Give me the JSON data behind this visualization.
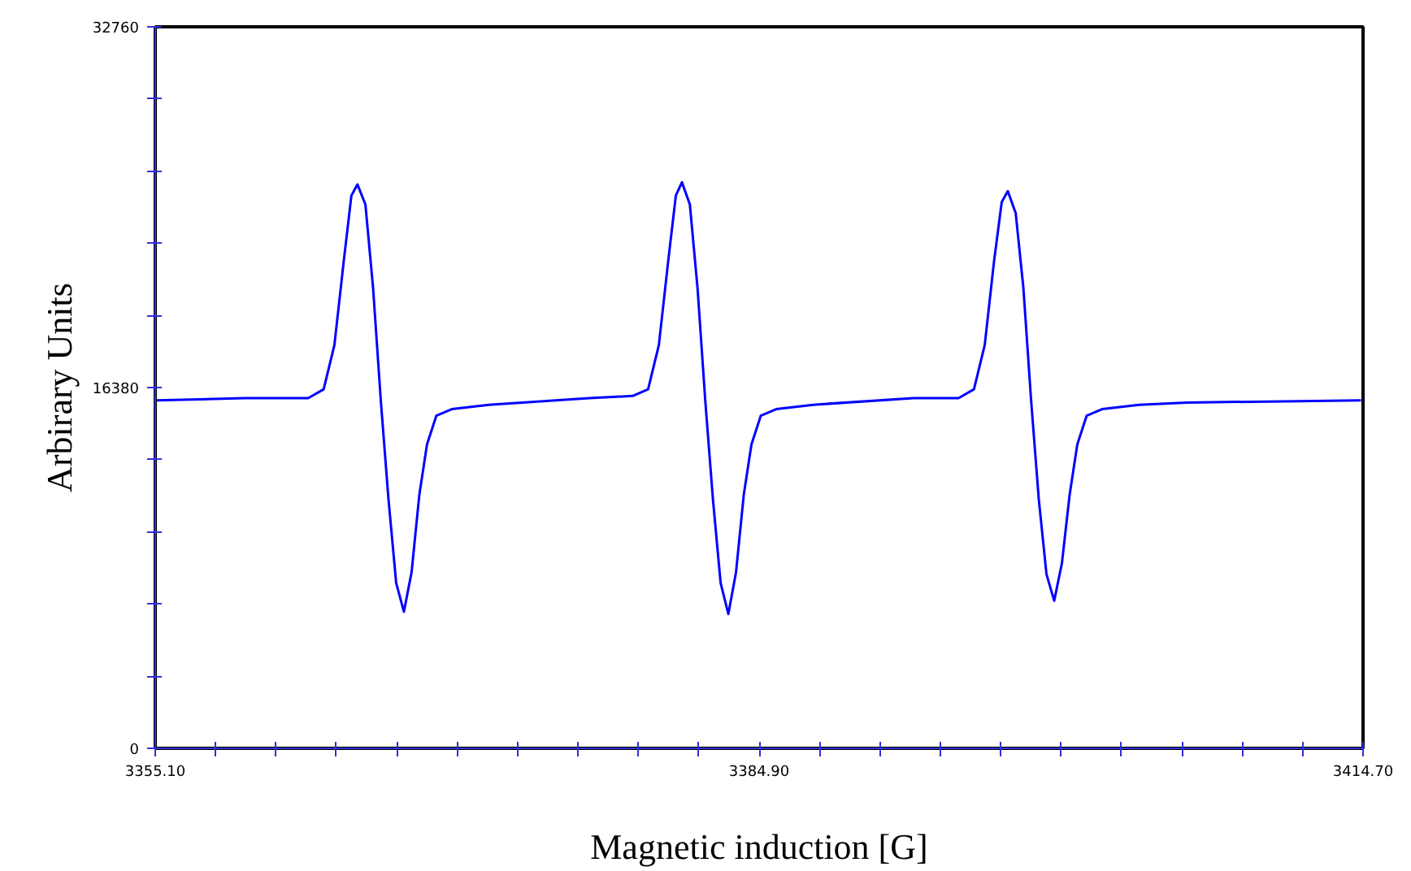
{
  "chart_data": {
    "type": "line",
    "xlabel": "Magnetic induction [G]",
    "ylabel": "Arbirary Units",
    "xlim": [
      3355.1,
      3414.7
    ],
    "ylim": [
      0,
      32760
    ],
    "xticks": [
      {
        "value": 3355.1,
        "label": "3355.10"
      },
      {
        "value": 3358.08,
        "label": null
      },
      {
        "value": 3361.06,
        "label": null
      },
      {
        "value": 3364.04,
        "label": null
      },
      {
        "value": 3367.02,
        "label": null
      },
      {
        "value": 3370.0,
        "label": null
      },
      {
        "value": 3372.98,
        "label": null
      },
      {
        "value": 3375.96,
        "label": null
      },
      {
        "value": 3378.94,
        "label": null
      },
      {
        "value": 3381.92,
        "label": null
      },
      {
        "value": 3384.9,
        "label": "3384.90"
      },
      {
        "value": 3387.88,
        "label": null
      },
      {
        "value": 3390.86,
        "label": null
      },
      {
        "value": 3393.84,
        "label": null
      },
      {
        "value": 3396.82,
        "label": null
      },
      {
        "value": 3399.8,
        "label": null
      },
      {
        "value": 3402.78,
        "label": null
      },
      {
        "value": 3405.76,
        "label": null
      },
      {
        "value": 3408.74,
        "label": null
      },
      {
        "value": 3411.72,
        "label": null
      },
      {
        "value": 3414.7,
        "label": "3414.70"
      }
    ],
    "yticks": [
      0,
      {
        "value": 3276,
        "label": null
      },
      {
        "value": 6552,
        "label": null
      },
      {
        "value": 9828,
        "label": null
      },
      {
        "value": 13104,
        "label": null
      },
      16380,
      {
        "value": 19656,
        "label": null
      },
      {
        "value": 22932,
        "label": null
      },
      {
        "value": 26208,
        "label": null
      },
      {
        "value": 29484,
        "label": null
      },
      32760
    ],
    "series": [
      {
        "color": "#0000ff",
        "line_style": "solid",
        "x": [
          3355.18,
          3359.52,
          3362.65,
          3363.41,
          3363.94,
          3364.4,
          3364.78,
          3365.08,
          3365.47,
          3365.85,
          3366.23,
          3366.61,
          3366.99,
          3367.37,
          3367.75,
          3368.13,
          3368.51,
          3368.97,
          3369.73,
          3371.56,
          3376.52,
          3378.66,
          3379.42,
          3379.95,
          3380.41,
          3380.79,
          3381.09,
          3381.48,
          3381.86,
          3382.24,
          3382.62,
          3383.0,
          3383.38,
          3383.76,
          3384.14,
          3384.52,
          3384.98,
          3385.74,
          3387.57,
          3392.52,
          3394.74,
          3395.5,
          3396.03,
          3396.49,
          3396.87,
          3397.17,
          3397.56,
          3397.94,
          3398.32,
          3398.7,
          3399.08,
          3399.46,
          3399.84,
          3400.22,
          3400.6,
          3401.06,
          3401.82,
          3403.65,
          3406.01,
          3414.6
        ],
        "values": [
          15800,
          15900,
          15900,
          16300,
          18300,
          22100,
          25100,
          25600,
          24700,
          20900,
          15800,
          11300,
          7500,
          6200,
          8000,
          11500,
          13800,
          15100,
          15400,
          15600,
          15900,
          16000,
          16300,
          18300,
          22100,
          25100,
          25700,
          24700,
          20900,
          15800,
          11300,
          7500,
          6100,
          8000,
          11500,
          13800,
          15100,
          15400,
          15600,
          15900,
          15900,
          16300,
          18300,
          22100,
          24800,
          25300,
          24300,
          20900,
          15800,
          11300,
          7900,
          6700,
          8400,
          11500,
          13800,
          15100,
          15400,
          15600,
          15700,
          15800
        ]
      }
    ]
  }
}
